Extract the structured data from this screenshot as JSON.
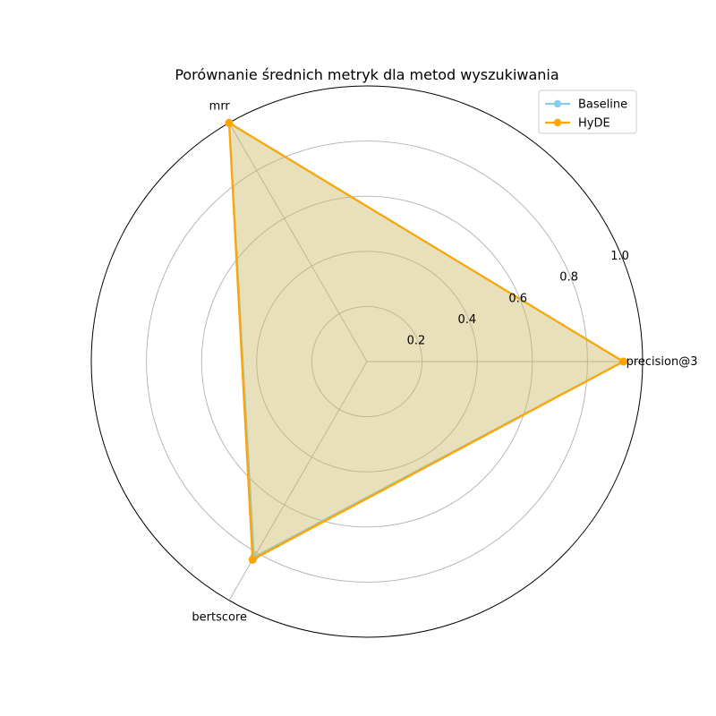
{
  "chart_data": {
    "type": "radar",
    "title": "Porównanie średnich metryk dla metod wyszukiwania",
    "categories": [
      "precision@3",
      "mrr",
      "bertscore"
    ],
    "rmax": 1.0,
    "radial_ticks": [
      0.2,
      0.4,
      0.6,
      0.8,
      1.0
    ],
    "radial_tick_labels": [
      "0.2",
      "0.4",
      "0.6",
      "0.8",
      "1.0"
    ],
    "grid": true,
    "legend_position": "top-right",
    "series": [
      {
        "name": "Baseline",
        "values": [
          0.93,
          1.0,
          0.82
        ],
        "color": "#87CEEB"
      },
      {
        "name": "HyDE",
        "values": [
          0.93,
          1.0,
          0.83
        ],
        "color": "#FFA500"
      }
    ]
  }
}
